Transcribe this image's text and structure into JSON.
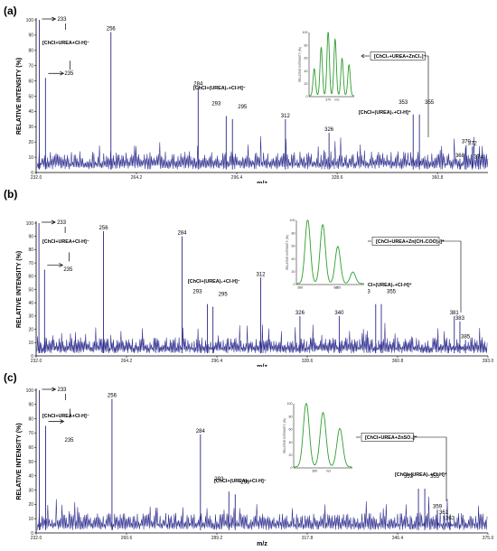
{
  "chart_data": [
    {
      "type": "line",
      "panel_label": "(a)",
      "xlabel": "m/z",
      "ylabel": "RELATIVE INTENSITY (%)",
      "xlim": [
        232.0,
        377.0
      ],
      "ylim": [
        0,
        100
      ],
      "xticks": [
        "232.0",
        "264.2",
        "296.4",
        "328.6",
        "360.8"
      ],
      "yticks": [
        "0",
        "10",
        "20",
        "30",
        "40",
        "50",
        "60",
        "70",
        "80",
        "90",
        "100"
      ],
      "peaks": [
        {
          "mz": 233,
          "intensity": 100
        },
        {
          "mz": 235,
          "intensity": 62
        },
        {
          "mz": 256,
          "intensity": 92
        },
        {
          "mz": 284,
          "intensity": 56
        },
        {
          "mz": 293,
          "intensity": 37
        },
        {
          "mz": 295,
          "intensity": 35
        },
        {
          "mz": 312,
          "intensity": 35
        },
        {
          "mz": 326,
          "intensity": 26
        },
        {
          "mz": 353,
          "intensity": 38
        },
        {
          "mz": 355,
          "intensity": 38
        },
        {
          "mz": 368,
          "intensity": 9
        },
        {
          "mz": 370,
          "intensity": 18
        },
        {
          "mz": 372,
          "intensity": 17
        },
        {
          "mz": 374,
          "intensity": 8
        }
      ],
      "peak_labels": [
        "233",
        "235",
        "256",
        "284",
        "293",
        "295",
        "312",
        "326",
        "353",
        "355",
        "368",
        "370",
        "372",
        "374"
      ],
      "annotations": [
        "[ChCl+UREA+Cl-H]⁻",
        "[ChCl+(UREA)₂+Cl-H]⁻",
        "[ChCl+(UREA)₂+Cl-H]⁺",
        "[ChCl₂+UREA+ZnCl₂]⁻"
      ],
      "inset": {
        "ylabel": "RELATIVE INTENSITY (%)",
        "xlabel": "m/z",
        "xtick": "370",
        "yticks": [
          "0",
          "20",
          "40",
          "60",
          "80",
          "100"
        ],
        "peaks": [
          {
            "mz": 366,
            "intensity": 42
          },
          {
            "mz": 368,
            "intensity": 75
          },
          {
            "mz": 370,
            "intensity": 100
          },
          {
            "mz": 372,
            "intensity": 88
          },
          {
            "mz": 374,
            "intensity": 58
          },
          {
            "mz": 376,
            "intensity": 48
          }
        ]
      }
    },
    {
      "type": "line",
      "panel_label": "(b)",
      "xlabel": "m/z",
      "ylabel": "RELATIVE INTENSITY (%)",
      "xlim": [
        232.0,
        393.0
      ],
      "ylim": [
        0,
        100
      ],
      "xticks": [
        "232.0",
        "264.2",
        "296.4",
        "328.6",
        "360.8",
        "393.0"
      ],
      "yticks": [
        "0",
        "10",
        "20",
        "30",
        "40",
        "50",
        "60",
        "70",
        "80",
        "90",
        "100"
      ],
      "peaks": [
        {
          "mz": 233,
          "intensity": 100
        },
        {
          "mz": 235,
          "intensity": 65
        },
        {
          "mz": 256,
          "intensity": 94
        },
        {
          "mz": 284,
          "intensity": 90
        },
        {
          "mz": 293,
          "intensity": 39
        },
        {
          "mz": 295,
          "intensity": 37
        },
        {
          "mz": 312,
          "intensity": 59
        },
        {
          "mz": 326,
          "intensity": 30
        },
        {
          "mz": 340,
          "intensity": 30
        },
        {
          "mz": 353,
          "intensity": 39
        },
        {
          "mz": 355,
          "intensity": 39
        },
        {
          "mz": 381,
          "intensity": 30
        },
        {
          "mz": 383,
          "intensity": 26
        },
        {
          "mz": 385,
          "intensity": 12
        }
      ],
      "peak_labels": [
        "233",
        "235",
        "256",
        "284",
        "293",
        "295",
        "312",
        "326",
        "340",
        "353",
        "355",
        "381",
        "383",
        "385"
      ],
      "annotations": [
        "[ChCl+UREA+Cl-H]⁻",
        "[ChCl+(UREA)₂+Cl-H]⁻",
        "[ChCl+(UREA)₂+Cl-H]⁺",
        "[ChCl+UREA+Zn(CH₃COO)₂]⁺"
      ],
      "inset": {
        "ylabel": "RELATIVE INTENSITY (%)",
        "xlabel": "m/z",
        "xtick": "380",
        "xtick2": "385",
        "yticks": [
          "0",
          "20",
          "40",
          "60",
          "80",
          "100"
        ],
        "peaks": [
          {
            "mz": 381,
            "intensity": 100
          },
          {
            "mz": 383,
            "intensity": 92
          },
          {
            "mz": 385,
            "intensity": 58
          },
          {
            "mz": 387,
            "intensity": 18
          }
        ]
      }
    },
    {
      "type": "line",
      "panel_label": "(c)",
      "xlabel": "m/z",
      "ylabel": "RELATIVE INTENSITY (%)",
      "xlim": [
        232.0,
        375.0
      ],
      "ylim": [
        0,
        100
      ],
      "xticks": [
        "232.0",
        "260.6",
        "289.2",
        "317.8",
        "346.4",
        "375.0"
      ],
      "yticks": [
        "0",
        "10",
        "20",
        "30",
        "40",
        "50",
        "60",
        "70",
        "80",
        "90",
        "100"
      ],
      "peaks": [
        {
          "mz": 233,
          "intensity": 100
        },
        {
          "mz": 235,
          "intensity": 75
        },
        {
          "mz": 256,
          "intensity": 94
        },
        {
          "mz": 284,
          "intensity": 69
        },
        {
          "mz": 293,
          "intensity": 29
        },
        {
          "mz": 295,
          "intensity": 27
        },
        {
          "mz": 353,
          "intensity": 31
        },
        {
          "mz": 355,
          "intensity": 31
        },
        {
          "mz": 359,
          "intensity": 16
        },
        {
          "mz": 361,
          "intensity": 12
        },
        {
          "mz": 363,
          "intensity": 8
        }
      ],
      "peak_labels": [
        "233",
        "235",
        "256",
        "284",
        "293",
        "295",
        "353",
        "355",
        "359",
        "361",
        "363"
      ],
      "annotations": [
        "[ChCl+UREA+Cl-H]⁻",
        "[ChCl+(UREA)₂+Cl-H]⁻",
        "[ChCl+(UREA)₂+Cl-H]⁺",
        "[ChCl+UREA+ZnSO₄]⁺"
      ],
      "inset": {
        "ylabel": "RELATIVE INTENSITY (%)",
        "xlabel": "m/z",
        "xtick": "360",
        "yticks": [
          "0",
          "20",
          "40",
          "60",
          "80",
          "100"
        ],
        "peaks": [
          {
            "mz": 359,
            "intensity": 100
          },
          {
            "mz": 361,
            "intensity": 85
          },
          {
            "mz": 363,
            "intensity": 60
          }
        ]
      }
    }
  ],
  "colors": {
    "spectrum": "#28288c",
    "inset_line": "#2e9e2e",
    "axis": "#000000"
  }
}
